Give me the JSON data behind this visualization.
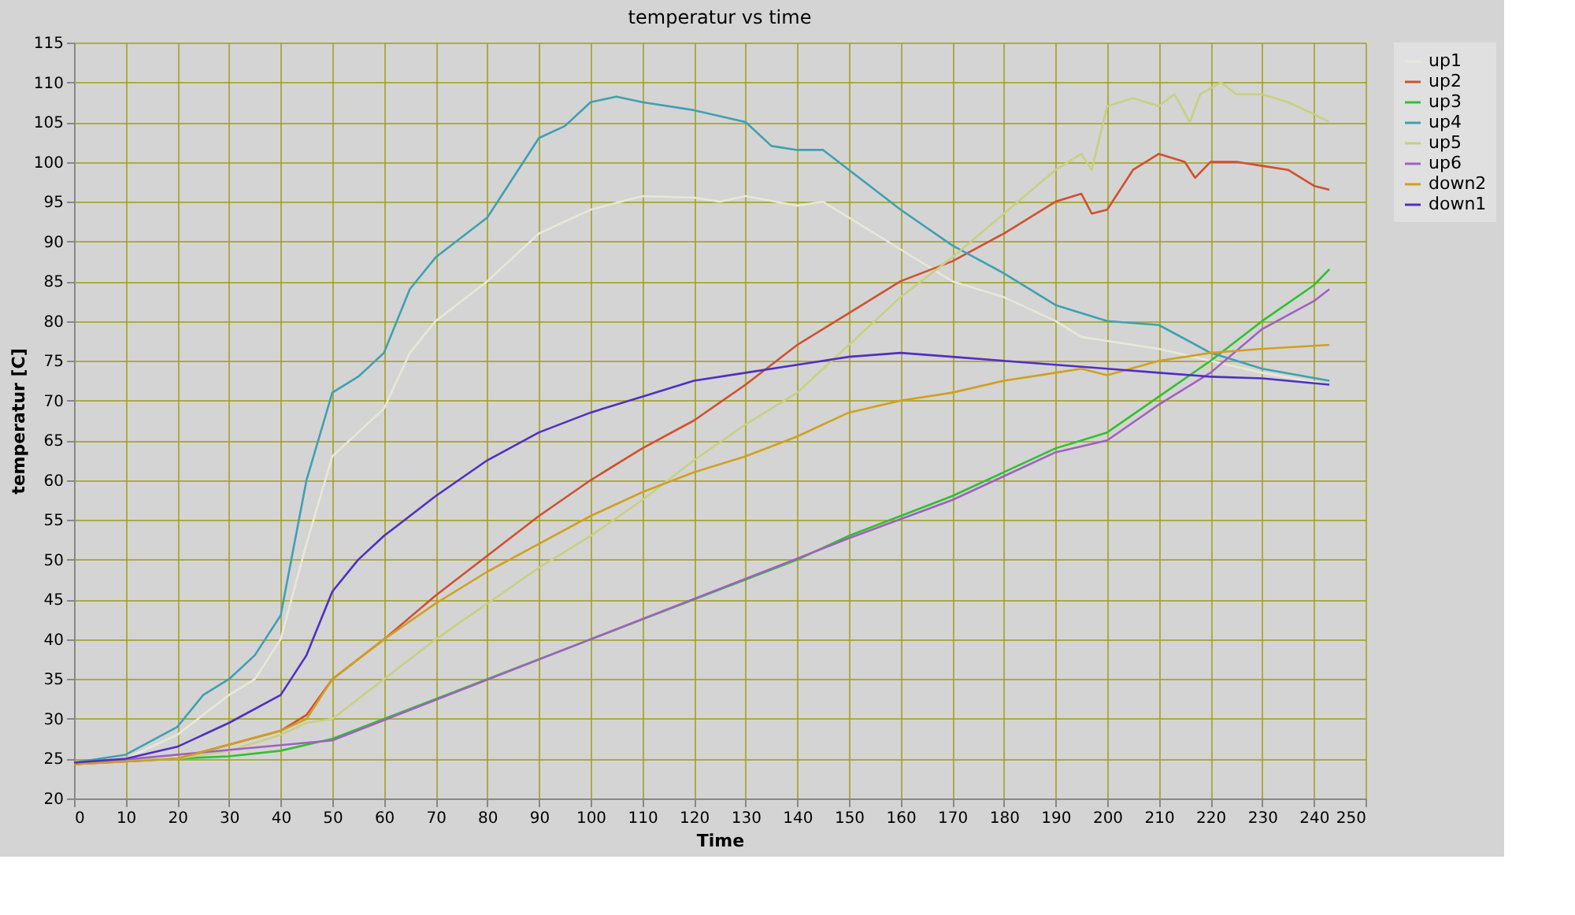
{
  "chart_data": {
    "type": "line",
    "title": "temperatur vs time",
    "xlabel": "Time",
    "ylabel": "temperatur [C]",
    "xlim": [
      0,
      250
    ],
    "xticks": [
      0,
      10,
      20,
      30,
      40,
      50,
      60,
      70,
      80,
      90,
      100,
      110,
      120,
      130,
      140,
      150,
      160,
      170,
      180,
      190,
      200,
      210,
      220,
      230,
      240,
      250
    ],
    "ylim": [
      20,
      115
    ],
    "yticks": [
      20,
      25,
      30,
      35,
      40,
      45,
      50,
      55,
      60,
      65,
      70,
      75,
      80,
      85,
      90,
      95,
      100,
      105,
      110,
      115
    ],
    "grid": true,
    "legend": "right",
    "marker": "none",
    "line_style": "solid",
    "series": [
      {
        "name": "up1",
        "color": "#e8e8d8",
        "x": [
          0,
          10,
          20,
          30,
          35,
          40,
          45,
          50,
          55,
          60,
          65,
          70,
          80,
          90,
          100,
          110,
          120,
          125,
          130,
          140,
          145,
          150,
          160,
          170,
          180,
          190,
          195,
          200,
          210,
          220,
          230,
          243
        ],
        "values": [
          24.3,
          25,
          28,
          33,
          35,
          40,
          52,
          63,
          66,
          69,
          76,
          80,
          85,
          91,
          94,
          95.7,
          95.5,
          95,
          95.7,
          94.5,
          95,
          93,
          89,
          85,
          83,
          80,
          78,
          77.5,
          76.5,
          75,
          73.5,
          72
        ]
      },
      {
        "name": "up2",
        "color": "#d05030",
        "x": [
          0,
          20,
          40,
          45,
          50,
          60,
          70,
          80,
          90,
          100,
          110,
          120,
          130,
          140,
          150,
          160,
          170,
          180,
          190,
          195,
          197,
          200,
          205,
          210,
          215,
          217,
          220,
          225,
          230,
          235,
          240,
          243
        ],
        "values": [
          24.3,
          25,
          28.5,
          30.5,
          35,
          40,
          45.5,
          50.5,
          55.5,
          60,
          64,
          67.5,
          72,
          77,
          81,
          85,
          87.5,
          91,
          95,
          96,
          93.5,
          94,
          99,
          101,
          100,
          98,
          100,
          100,
          99.5,
          99,
          97,
          96.5
        ]
      },
      {
        "name": "up3",
        "color": "#30c030",
        "x": [
          0,
          20,
          30,
          40,
          50,
          60,
          70,
          80,
          90,
          100,
          110,
          120,
          130,
          140,
          150,
          160,
          170,
          180,
          190,
          200,
          210,
          220,
          230,
          240,
          243
        ],
        "values": [
          24.5,
          25,
          25.3,
          26,
          27.5,
          30,
          32.5,
          35,
          37.5,
          40,
          42.5,
          45,
          47.5,
          50,
          53,
          55.5,
          58,
          61,
          64,
          66,
          70.5,
          75,
          80,
          84.5,
          86.5
        ]
      },
      {
        "name": "up4",
        "color": "#40a0b0",
        "x": [
          0,
          10,
          20,
          25,
          30,
          35,
          40,
          45,
          50,
          55,
          60,
          65,
          70,
          80,
          85,
          90,
          95,
          100,
          105,
          110,
          120,
          130,
          135,
          140,
          145,
          150,
          160,
          170,
          180,
          190,
          200,
          210,
          220,
          230,
          243
        ],
        "values": [
          24.5,
          25.5,
          29,
          33,
          35,
          38,
          43,
          60,
          71,
          73,
          76,
          84,
          88,
          93,
          98,
          103,
          104.5,
          107.5,
          108.2,
          107.5,
          106.5,
          105,
          102,
          101.5,
          101.5,
          99,
          94,
          89.5,
          86,
          82,
          80,
          79.5,
          76,
          74,
          72.5
        ]
      },
      {
        "name": "up5",
        "color": "#c8d080",
        "x": [
          0,
          20,
          30,
          40,
          45,
          50,
          60,
          70,
          80,
          90,
          100,
          110,
          120,
          130,
          140,
          150,
          160,
          170,
          180,
          190,
          195,
          197,
          200,
          205,
          210,
          213,
          216,
          218,
          222,
          225,
          230,
          235,
          240,
          243
        ],
        "values": [
          24.5,
          25,
          26,
          28,
          29.5,
          30,
          35,
          40,
          44.5,
          49,
          53,
          57.5,
          62.5,
          67,
          71,
          77,
          83,
          88,
          93.5,
          99,
          101,
          99,
          107,
          108,
          107,
          108.5,
          105,
          108.5,
          110,
          108.5,
          108.5,
          107.5,
          106,
          105
        ]
      },
      {
        "name": "up6",
        "color": "#a060c0",
        "x": [
          0,
          50,
          100,
          150,
          170,
          180,
          190,
          200,
          210,
          220,
          230,
          240,
          243
        ],
        "values": [
          24.3,
          27.3,
          40,
          52.7,
          57.5,
          60.5,
          63.5,
          65,
          69.5,
          73.5,
          79,
          82.5,
          84
        ]
      },
      {
        "name": "down2",
        "color": "#d0a020",
        "x": [
          0,
          20,
          40,
          45,
          50,
          60,
          70,
          80,
          90,
          100,
          110,
          120,
          130,
          140,
          150,
          160,
          170,
          180,
          190,
          195,
          200,
          210,
          220,
          230,
          243
        ],
        "values": [
          24.3,
          25,
          28.5,
          30,
          35,
          40,
          44.5,
          48.5,
          52,
          55.5,
          58.5,
          61,
          63,
          65.5,
          68.5,
          70,
          71,
          72.5,
          73.5,
          74,
          73.2,
          75,
          76,
          76.5,
          77
        ]
      },
      {
        "name": "down1",
        "color": "#5030c0",
        "x": [
          0,
          10,
          20,
          30,
          40,
          45,
          50,
          55,
          60,
          70,
          80,
          90,
          100,
          110,
          120,
          130,
          140,
          150,
          160,
          170,
          180,
          190,
          200,
          210,
          220,
          230,
          243
        ],
        "values": [
          24.5,
          25,
          26.5,
          29.5,
          33,
          38,
          46,
          50,
          53,
          58,
          62.5,
          66,
          68.5,
          70.5,
          72.5,
          73.5,
          74.5,
          75.5,
          76,
          75.5,
          75,
          74.5,
          74,
          73.5,
          73,
          72.8,
          72
        ]
      }
    ]
  }
}
